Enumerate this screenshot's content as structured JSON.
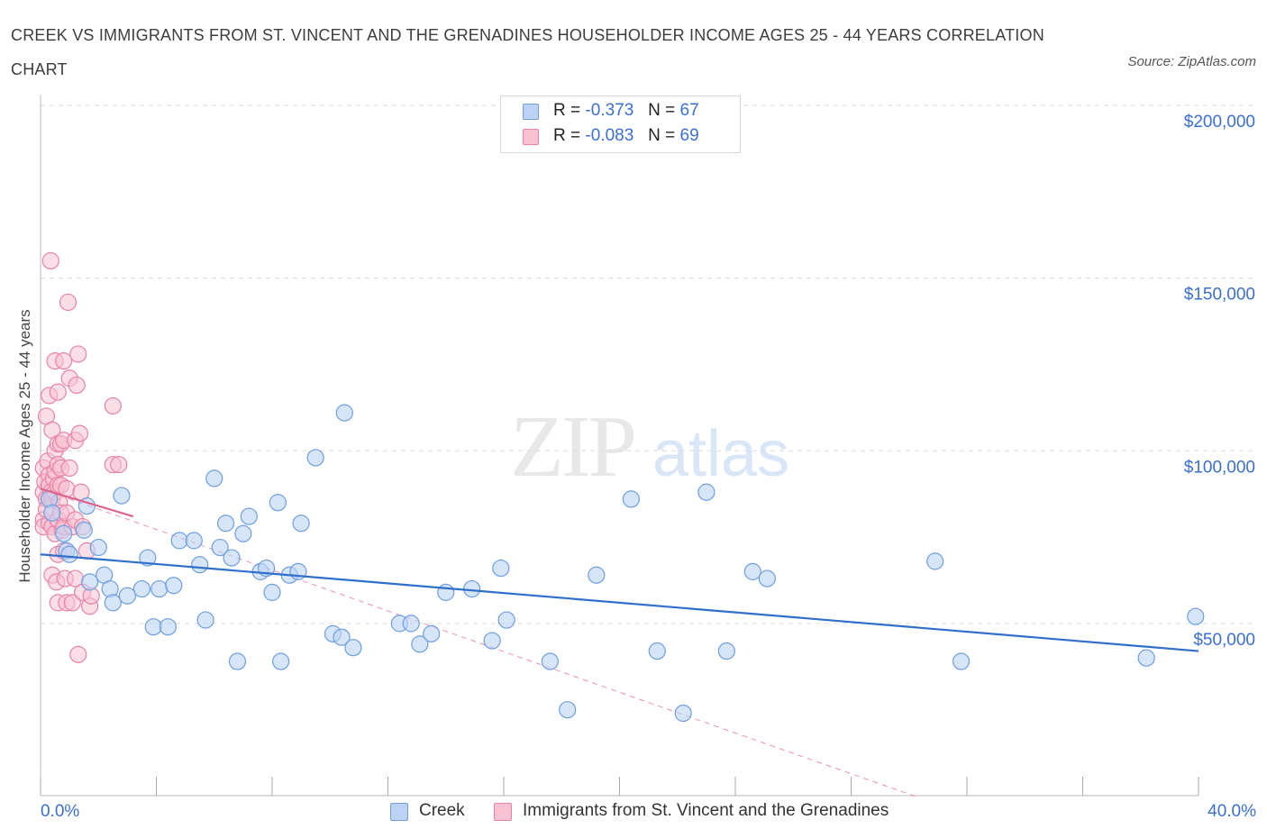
{
  "title": "CREEK VS IMMIGRANTS FROM ST. VINCENT AND THE GRENADINES HOUSEHOLDER INCOME AGES 25 - 44 YEARS CORRELATION CHART",
  "source": "Source: ZipAtlas.com",
  "watermark": {
    "zip": "ZIP",
    "atlas": "atlas"
  },
  "legend": {
    "creek": {
      "r_label": "R =",
      "r_value": "-0.373",
      "n_label": "N =",
      "n_value": "67"
    },
    "svg_imm": {
      "r_label": "R =",
      "r_value": "-0.083",
      "n_label": "N =",
      "n_value": "69"
    }
  },
  "bottom_legend": {
    "creek": "Creek",
    "svg_imm": "Immigrants from St. Vincent and the Grenadines"
  },
  "colors": {
    "creek_fill": "#bcd3f5",
    "creek_stroke": "#6e9ee0",
    "creek_line": "#2f6fcc",
    "svg_fill": "#f7c2d2",
    "svg_stroke": "#e883a6",
    "svg_line": "#e0628e",
    "axis_label": "#3b6fd1",
    "grid": "#dcdcdc"
  },
  "chart_data": {
    "type": "scatter",
    "title": "CREEK VS IMMIGRANTS FROM ST. VINCENT AND THE GRENADINES HOUSEHOLDER INCOME AGES 25 - 44 YEARS CORRELATION CHART",
    "xlabel": "",
    "ylabel": "Householder Income Ages 25 - 44 years",
    "xlim": [
      0,
      40
    ],
    "ylim": [
      0,
      200000
    ],
    "x_tick_labels": [
      "0.0%",
      "40.0%"
    ],
    "y_ticks": [
      50000,
      100000,
      150000,
      200000
    ],
    "y_tick_labels": [
      "$50,000",
      "$100,000",
      "$150,000",
      "$200,000"
    ],
    "grid": true,
    "legend_position": "top-center",
    "series": [
      {
        "name": "Creek",
        "r": -0.373,
        "n": 67,
        "trend": {
          "x": [
            0,
            40
          ],
          "y": [
            70000,
            42000
          ]
        },
        "points": [
          [
            0.3,
            86000
          ],
          [
            0.4,
            82000
          ],
          [
            0.8,
            76000
          ],
          [
            0.9,
            71000
          ],
          [
            1.0,
            70000
          ],
          [
            1.5,
            77000
          ],
          [
            1.6,
            84000
          ],
          [
            1.7,
            62000
          ],
          [
            2.0,
            72000
          ],
          [
            2.2,
            64000
          ],
          [
            2.4,
            60000
          ],
          [
            2.5,
            56000
          ],
          [
            2.8,
            87000
          ],
          [
            3.0,
            58000
          ],
          [
            3.5,
            60000
          ],
          [
            3.7,
            69000
          ],
          [
            3.9,
            49000
          ],
          [
            4.1,
            60000
          ],
          [
            4.4,
            49000
          ],
          [
            4.6,
            61000
          ],
          [
            4.8,
            74000
          ],
          [
            5.3,
            74000
          ],
          [
            5.5,
            67000
          ],
          [
            5.7,
            51000
          ],
          [
            6.0,
            92000
          ],
          [
            6.2,
            72000
          ],
          [
            6.4,
            79000
          ],
          [
            6.6,
            69000
          ],
          [
            6.8,
            39000
          ],
          [
            7.0,
            76000
          ],
          [
            7.2,
            81000
          ],
          [
            7.6,
            65000
          ],
          [
            7.8,
            66000
          ],
          [
            8.0,
            59000
          ],
          [
            8.2,
            85000
          ],
          [
            8.3,
            39000
          ],
          [
            8.6,
            64000
          ],
          [
            8.9,
            65000
          ],
          [
            9.0,
            79000
          ],
          [
            9.5,
            98000
          ],
          [
            10.1,
            47000
          ],
          [
            10.4,
            46000
          ],
          [
            10.5,
            111000
          ],
          [
            10.8,
            43000
          ],
          [
            12.4,
            50000
          ],
          [
            12.8,
            50000
          ],
          [
            13.1,
            44000
          ],
          [
            13.5,
            47000
          ],
          [
            14.0,
            59000
          ],
          [
            14.9,
            60000
          ],
          [
            15.6,
            45000
          ],
          [
            15.9,
            66000
          ],
          [
            16.1,
            51000
          ],
          [
            17.6,
            39000
          ],
          [
            18.2,
            25000
          ],
          [
            19.2,
            64000
          ],
          [
            20.4,
            86000
          ],
          [
            21.3,
            42000
          ],
          [
            22.2,
            24000
          ],
          [
            23.0,
            88000
          ],
          [
            23.7,
            42000
          ],
          [
            24.6,
            65000
          ],
          [
            25.1,
            63000
          ],
          [
            30.9,
            68000
          ],
          [
            31.8,
            39000
          ],
          [
            38.2,
            40000
          ],
          [
            39.9,
            52000
          ]
        ]
      },
      {
        "name": "Immigrants from St. Vincent and the Grenadines",
        "r": -0.083,
        "n": 69,
        "trend": {
          "x": [
            0,
            3.2
          ],
          "y": [
            89000,
            81000
          ]
        },
        "trend_extended": {
          "x": [
            0,
            30.2
          ],
          "y": [
            89000,
            0
          ]
        },
        "points": [
          [
            0.1,
            95000
          ],
          [
            0.1,
            88000
          ],
          [
            0.1,
            80000
          ],
          [
            0.1,
            78000
          ],
          [
            0.15,
            91000
          ],
          [
            0.2,
            110000
          ],
          [
            0.2,
            86000
          ],
          [
            0.2,
            83000
          ],
          [
            0.25,
            97000
          ],
          [
            0.3,
            116000
          ],
          [
            0.3,
            93000
          ],
          [
            0.3,
            90000
          ],
          [
            0.3,
            79000
          ],
          [
            0.35,
            155000
          ],
          [
            0.35,
            88000
          ],
          [
            0.4,
            106000
          ],
          [
            0.4,
            86000
          ],
          [
            0.4,
            82000
          ],
          [
            0.4,
            78000
          ],
          [
            0.4,
            64000
          ],
          [
            0.45,
            92000
          ],
          [
            0.5,
            126000
          ],
          [
            0.5,
            100000
          ],
          [
            0.5,
            94000
          ],
          [
            0.5,
            88000
          ],
          [
            0.5,
            76000
          ],
          [
            0.55,
            62000
          ],
          [
            0.6,
            117000
          ],
          [
            0.6,
            102000
          ],
          [
            0.6,
            96000
          ],
          [
            0.6,
            90000
          ],
          [
            0.6,
            80000
          ],
          [
            0.6,
            70000
          ],
          [
            0.6,
            56000
          ],
          [
            0.65,
            85000
          ],
          [
            0.7,
            102000
          ],
          [
            0.7,
            95000
          ],
          [
            0.7,
            90000
          ],
          [
            0.7,
            82000
          ],
          [
            0.75,
            77000
          ],
          [
            0.8,
            126000
          ],
          [
            0.8,
            103000
          ],
          [
            0.8,
            78000
          ],
          [
            0.8,
            71000
          ],
          [
            0.85,
            63000
          ],
          [
            0.9,
            89000
          ],
          [
            0.9,
            82000
          ],
          [
            0.9,
            56000
          ],
          [
            0.95,
            143000
          ],
          [
            1.0,
            121000
          ],
          [
            1.0,
            95000
          ],
          [
            1.1,
            78000
          ],
          [
            1.1,
            56000
          ],
          [
            1.2,
            103000
          ],
          [
            1.2,
            63000
          ],
          [
            1.2,
            80000
          ],
          [
            1.25,
            119000
          ],
          [
            1.3,
            128000
          ],
          [
            1.3,
            41000
          ],
          [
            1.35,
            105000
          ],
          [
            1.4,
            88000
          ],
          [
            1.45,
            59000
          ],
          [
            1.45,
            78000
          ],
          [
            1.6,
            71000
          ],
          [
            1.7,
            55000
          ],
          [
            1.75,
            58000
          ],
          [
            2.5,
            113000
          ],
          [
            2.5,
            96000
          ],
          [
            2.7,
            96000
          ]
        ]
      }
    ]
  }
}
